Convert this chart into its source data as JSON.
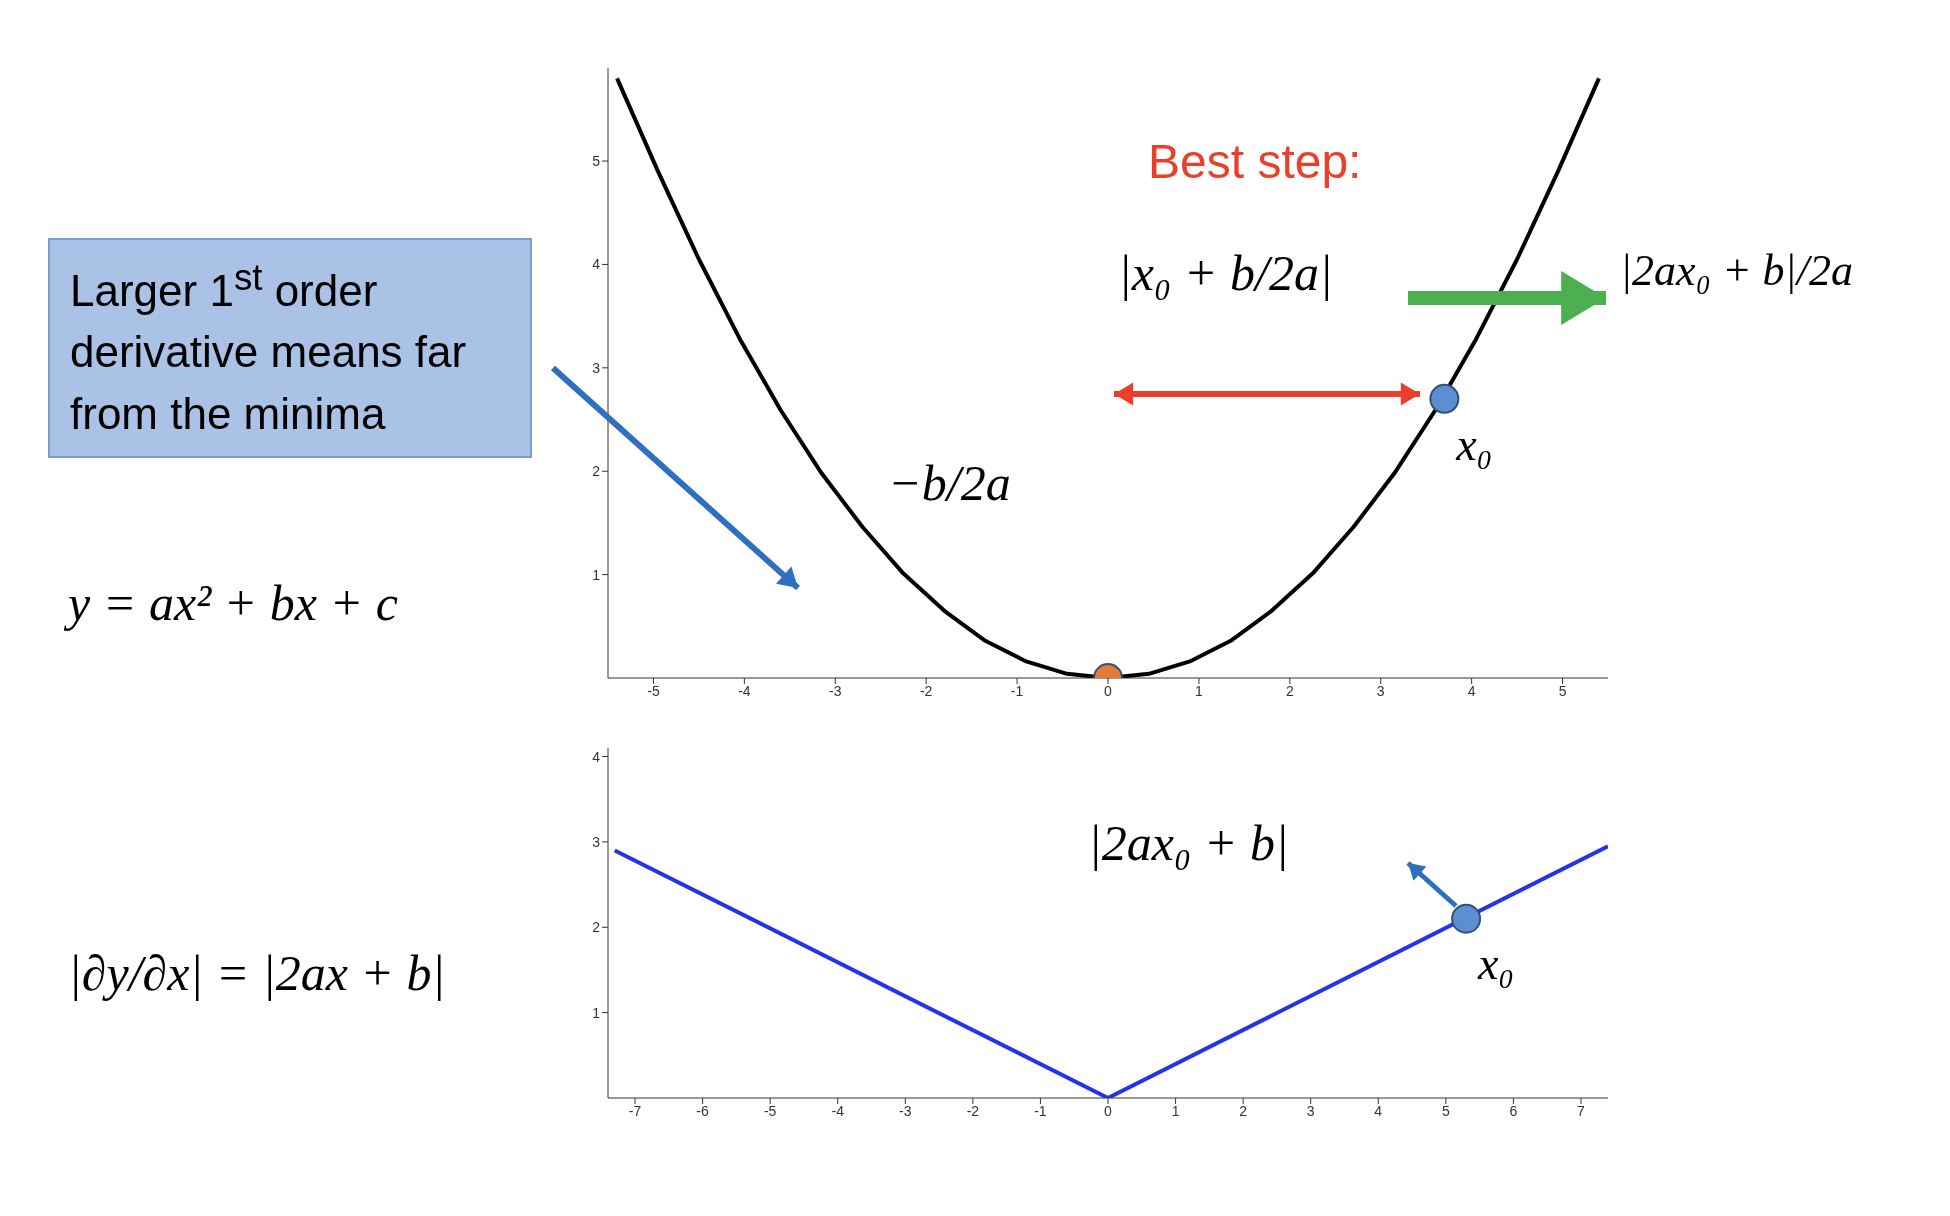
{
  "chart_data": [
    {
      "type": "line",
      "xlim": [
        -5.5,
        5.5
      ],
      "xticks": [
        -5,
        -4,
        -3,
        -2,
        -1,
        0,
        1,
        2,
        3,
        4,
        5
      ],
      "ylim": [
        0,
        5.9
      ],
      "yticks": [
        1,
        2,
        3,
        4,
        5
      ],
      "marker": "none",
      "series": [
        {
          "color": "#000000",
          "x": [
            -5.4,
            -4.95,
            -4.5,
            -4.05,
            -3.6,
            -3.15,
            -2.7,
            -2.25,
            -1.8,
            -1.35,
            -0.9,
            -0.45,
            0,
            0.45,
            0.9,
            1.35,
            1.8,
            2.25,
            2.7,
            3.15,
            3.6,
            4.05,
            4.5,
            4.95,
            5.4
          ],
          "values": [
            5.8,
            4.9,
            4.05,
            3.28,
            2.59,
            1.98,
            1.46,
            1.01,
            0.65,
            0.36,
            0.16,
            0.04,
            0,
            0.04,
            0.16,
            0.36,
            0.65,
            1.01,
            1.46,
            1.98,
            2.59,
            3.28,
            4.05,
            4.9,
            5.8
          ]
        },
        {
          "type": "scatter",
          "marker": "circle",
          "color": "#e07b39",
          "x": [
            0
          ],
          "values": [
            0
          ]
        },
        {
          "type": "scatter",
          "marker": "circle",
          "color": "#5b8fd1",
          "x": [
            3.7
          ],
          "values": [
            2.7
          ]
        }
      ],
      "annotations": [
        "Best step:",
        "|x₀ + b/2a|",
        "|2ax₀ + b|/2a",
        "−b/2a",
        "y = ax² + bx + c",
        "Larger 1$^{st}$ order derivative means far from the minima",
        {
          "text": "x₀",
          "x": 3.7,
          "y": 2.7
        }
      ]
    },
    {
      "type": "line",
      "xlim": [
        -7.4,
        7.4
      ],
      "xticks": [
        -7,
        -6,
        -5,
        -4,
        -3,
        -2,
        -1,
        0,
        1,
        2,
        3,
        4,
        5,
        6,
        7
      ],
      "ylim": [
        0,
        4.1
      ],
      "yticks": [
        1,
        2,
        3,
        4
      ],
      "marker": "none",
      "series": [
        {
          "color": "#2233ee",
          "x": [
            -7.3,
            0,
            7.4
          ],
          "values": [
            2.9,
            0,
            2.95
          ]
        },
        {
          "type": "scatter",
          "marker": "circle",
          "color": "#5b8fd1",
          "x": [
            5.3
          ],
          "values": [
            2.1
          ]
        }
      ],
      "annotations": [
        "|2ax₀ + b|",
        "|∂y/∂x| = |2ax + b|",
        {
          "text": "x₀",
          "x": 5.3,
          "y": 2.1
        }
      ]
    }
  ]
}
